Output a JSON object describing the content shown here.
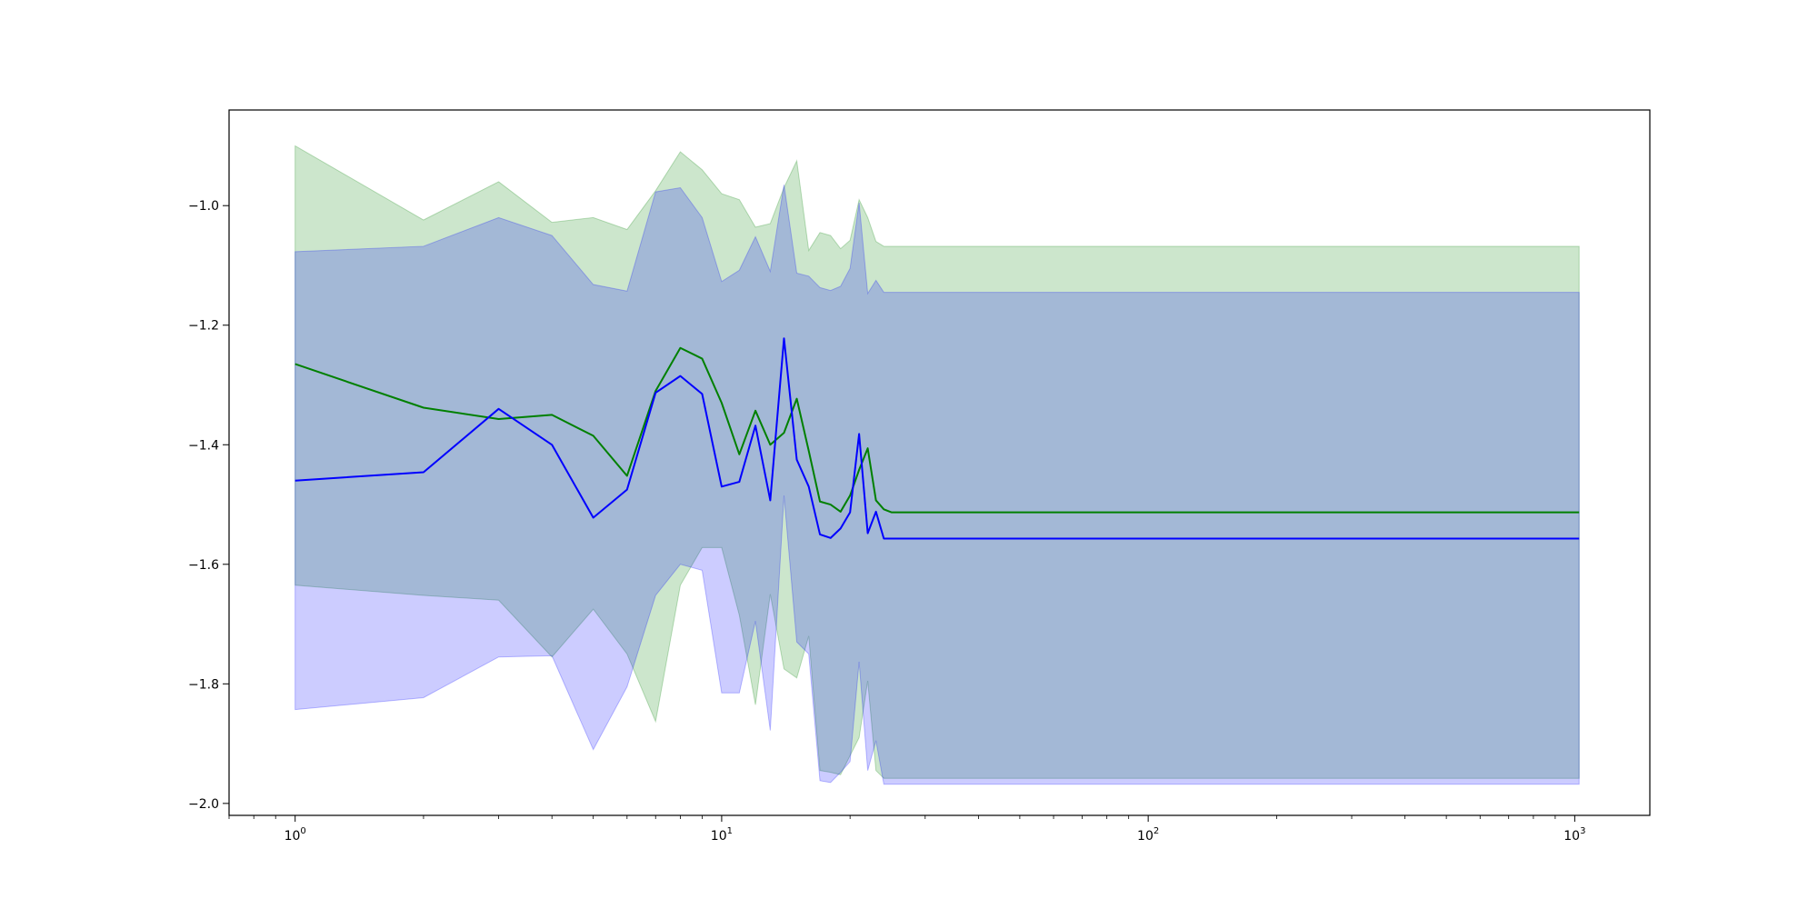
{
  "chart_data": {
    "type": "line",
    "title": "",
    "xlabel": "",
    "ylabel": "",
    "x_scale": "log",
    "xlim": [
      0.7,
      1500
    ],
    "ylim": [
      -2.02,
      -0.84
    ],
    "grid": false,
    "legend": "none",
    "x_ticks": [
      {
        "value": 1,
        "base": "10",
        "exp": "0"
      },
      {
        "value": 10,
        "base": "10",
        "exp": "1"
      },
      {
        "value": 100,
        "base": "10",
        "exp": "2"
      },
      {
        "value": 1000,
        "base": "10",
        "exp": "3"
      }
    ],
    "y_ticks": [
      {
        "value": -1.0,
        "label": "−1.0"
      },
      {
        "value": -1.2,
        "label": "−1.2"
      },
      {
        "value": -1.4,
        "label": "−1.4"
      },
      {
        "value": -1.6,
        "label": "−1.6"
      },
      {
        "value": -1.8,
        "label": "−1.8"
      },
      {
        "value": -2.0,
        "label": "−2.0"
      }
    ],
    "series": [
      {
        "color": "#008000",
        "band_color": "#008000",
        "band_opacity": 0.2,
        "x": [
          1,
          2,
          3,
          4,
          5,
          6,
          7,
          8,
          9,
          10,
          11,
          12,
          13,
          14,
          15,
          16,
          17,
          18,
          19,
          20,
          21,
          22,
          23,
          24,
          25,
          1024
        ],
        "y": [
          -1.265,
          -1.338,
          -1.357,
          -1.35,
          -1.385,
          -1.452,
          -1.31,
          -1.238,
          -1.256,
          -1.33,
          -1.416,
          -1.343,
          -1.4,
          -1.38,
          -1.323,
          -1.41,
          -1.495,
          -1.5,
          -1.512,
          -1.485,
          -1.442,
          -1.406,
          -1.493,
          -1.508,
          -1.513,
          -1.513
        ],
        "upper": [
          -0.9,
          -1.024,
          -0.96,
          -1.028,
          -1.02,
          -1.04,
          -0.975,
          -0.91,
          -0.94,
          -0.98,
          -0.99,
          -1.036,
          -1.03,
          -0.97,
          -0.925,
          -1.075,
          -1.045,
          -1.05,
          -1.072,
          -1.058,
          -0.99,
          -1.02,
          -1.06,
          -1.068,
          -1.068,
          -1.068
        ],
        "lower": [
          -1.635,
          -1.652,
          -1.66,
          -1.755,
          -1.675,
          -1.75,
          -1.863,
          -1.635,
          -1.572,
          -1.572,
          -1.685,
          -1.835,
          -1.65,
          -1.775,
          -1.79,
          -1.72,
          -1.945,
          -1.948,
          -1.952,
          -1.92,
          -1.89,
          -1.795,
          -1.945,
          -1.958,
          -1.958,
          -1.958
        ]
      },
      {
        "color": "#0000ff",
        "band_color": "#0000ff",
        "band_opacity": 0.2,
        "x": [
          1,
          2,
          3,
          4,
          5,
          6,
          7,
          8,
          9,
          10,
          11,
          12,
          13,
          14,
          15,
          16,
          17,
          18,
          19,
          20,
          21,
          22,
          23,
          24,
          25,
          1024
        ],
        "y": [
          -1.46,
          -1.446,
          -1.34,
          -1.4,
          -1.522,
          -1.475,
          -1.313,
          -1.285,
          -1.315,
          -1.47,
          -1.462,
          -1.368,
          -1.493,
          -1.222,
          -1.425,
          -1.47,
          -1.55,
          -1.556,
          -1.54,
          -1.513,
          -1.382,
          -1.548,
          -1.512,
          -1.557,
          -1.557,
          -1.557
        ],
        "upper": [
          -1.077,
          -1.068,
          -1.02,
          -1.05,
          -1.132,
          -1.143,
          -0.977,
          -0.97,
          -1.02,
          -1.127,
          -1.108,
          -1.052,
          -1.11,
          -0.965,
          -1.113,
          -1.118,
          -1.137,
          -1.142,
          -1.135,
          -1.105,
          -0.995,
          -1.147,
          -1.125,
          -1.145,
          -1.145,
          -1.145
        ],
        "lower": [
          -1.843,
          -1.823,
          -1.755,
          -1.753,
          -1.91,
          -1.805,
          -1.652,
          -1.6,
          -1.61,
          -1.815,
          -1.815,
          -1.695,
          -1.878,
          -1.485,
          -1.73,
          -1.75,
          -1.962,
          -1.965,
          -1.948,
          -1.93,
          -1.763,
          -1.945,
          -1.895,
          -1.968,
          -1.968,
          -1.968
        ]
      }
    ]
  }
}
